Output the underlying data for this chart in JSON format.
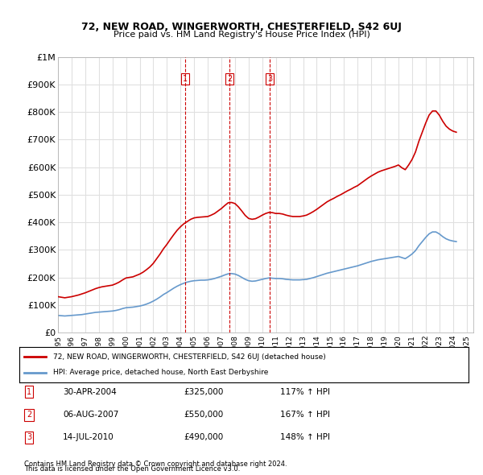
{
  "title": "72, NEW ROAD, WINGERWORTH, CHESTERFIELD, S42 6UJ",
  "subtitle": "Price paid vs. HM Land Registry's House Price Index (HPI)",
  "ylabel_ticks": [
    "£0",
    "£100K",
    "£200K",
    "£300K",
    "£400K",
    "£500K",
    "£600K",
    "£700K",
    "£800K",
    "£900K",
    "£1M"
  ],
  "ytick_values": [
    0,
    100000,
    200000,
    300000,
    400000,
    500000,
    600000,
    700000,
    800000,
    900000,
    1000000
  ],
  "ylim": [
    0,
    1000000
  ],
  "xlim_start": 1995.0,
  "xlim_end": 2025.5,
  "background_color": "#ffffff",
  "plot_background": "#ffffff",
  "grid_color": "#e0e0e0",
  "red_line_color": "#cc0000",
  "blue_line_color": "#6699cc",
  "transaction_marker_color": "#cc0000",
  "transaction_line_color": "#cc0000",
  "transactions": [
    {
      "date_num": 2004.33,
      "price": 325000,
      "label": "1",
      "date_str": "30-APR-2004",
      "price_str": "£325,000",
      "pct_str": "117% ↑ HPI"
    },
    {
      "date_num": 2007.59,
      "price": 550000,
      "label": "2",
      "date_str": "06-AUG-2007",
      "price_str": "£550,000",
      "pct_str": "167% ↑ HPI"
    },
    {
      "date_num": 2010.54,
      "price": 490000,
      "label": "3",
      "date_str": "14-JUL-2010",
      "price_str": "£490,000",
      "pct_str": "148% ↑ HPI"
    }
  ],
  "legend_label_red": "72, NEW ROAD, WINGERWORTH, CHESTERFIELD, S42 6UJ (detached house)",
  "legend_label_blue": "HPI: Average price, detached house, North East Derbyshire",
  "footnote1": "Contains HM Land Registry data © Crown copyright and database right 2024.",
  "footnote2": "This data is licensed under the Open Government Licence v3.0.",
  "hpi_data": {
    "years": [
      1995.0,
      1995.25,
      1995.5,
      1995.75,
      1996.0,
      1996.25,
      1996.5,
      1996.75,
      1997.0,
      1997.25,
      1997.5,
      1997.75,
      1998.0,
      1998.25,
      1998.5,
      1998.75,
      1999.0,
      1999.25,
      1999.5,
      1999.75,
      2000.0,
      2000.25,
      2000.5,
      2000.75,
      2001.0,
      2001.25,
      2001.5,
      2001.75,
      2002.0,
      2002.25,
      2002.5,
      2002.75,
      2003.0,
      2003.25,
      2003.5,
      2003.75,
      2004.0,
      2004.25,
      2004.5,
      2004.75,
      2005.0,
      2005.25,
      2005.5,
      2005.75,
      2006.0,
      2006.25,
      2006.5,
      2006.75,
      2007.0,
      2007.25,
      2007.5,
      2007.75,
      2008.0,
      2008.25,
      2008.5,
      2008.75,
      2009.0,
      2009.25,
      2009.5,
      2009.75,
      2010.0,
      2010.25,
      2010.5,
      2010.75,
      2011.0,
      2011.25,
      2011.5,
      2011.75,
      2012.0,
      2012.25,
      2012.5,
      2012.75,
      2013.0,
      2013.25,
      2013.5,
      2013.75,
      2014.0,
      2014.25,
      2014.5,
      2014.75,
      2015.0,
      2015.25,
      2015.5,
      2015.75,
      2016.0,
      2016.25,
      2016.5,
      2016.75,
      2017.0,
      2017.25,
      2017.5,
      2017.75,
      2018.0,
      2018.25,
      2018.5,
      2018.75,
      2019.0,
      2019.25,
      2019.5,
      2019.75,
      2020.0,
      2020.25,
      2020.5,
      2020.75,
      2021.0,
      2021.25,
      2021.5,
      2021.75,
      2022.0,
      2022.25,
      2022.5,
      2022.75,
      2023.0,
      2023.25,
      2023.5,
      2023.75,
      2024.0,
      2024.25
    ],
    "values": [
      62000,
      61000,
      60000,
      61000,
      62000,
      63000,
      64000,
      65000,
      67000,
      69000,
      71000,
      73000,
      74000,
      75000,
      76000,
      77000,
      78000,
      80000,
      83000,
      87000,
      90000,
      91000,
      92000,
      94000,
      96000,
      99000,
      103000,
      108000,
      114000,
      121000,
      129000,
      138000,
      145000,
      153000,
      161000,
      168000,
      174000,
      179000,
      183000,
      186000,
      188000,
      189000,
      190000,
      190000,
      191000,
      193000,
      196000,
      200000,
      204000,
      209000,
      213000,
      214000,
      212000,
      207000,
      200000,
      193000,
      188000,
      186000,
      187000,
      190000,
      193000,
      196000,
      198000,
      197000,
      196000,
      196000,
      195000,
      193000,
      192000,
      191000,
      191000,
      191000,
      192000,
      193000,
      196000,
      199000,
      203000,
      207000,
      211000,
      215000,
      218000,
      221000,
      224000,
      227000,
      230000,
      233000,
      236000,
      239000,
      242000,
      246000,
      250000,
      254000,
      258000,
      261000,
      264000,
      266000,
      268000,
      270000,
      272000,
      274000,
      276000,
      272000,
      268000,
      276000,
      285000,
      297000,
      315000,
      330000,
      345000,
      358000,
      365000,
      365000,
      358000,
      348000,
      340000,
      335000,
      332000,
      330000
    ]
  },
  "property_data": {
    "years": [
      1995.0,
      1995.25,
      1995.5,
      1995.75,
      1996.0,
      1996.25,
      1996.5,
      1996.75,
      1997.0,
      1997.25,
      1997.5,
      1997.75,
      1998.0,
      1998.25,
      1998.5,
      1998.75,
      1999.0,
      1999.25,
      1999.5,
      1999.75,
      2000.0,
      2000.25,
      2000.5,
      2000.75,
      2001.0,
      2001.25,
      2001.5,
      2001.75,
      2002.0,
      2002.25,
      2002.5,
      2002.75,
      2003.0,
      2003.25,
      2003.5,
      2003.75,
      2004.0,
      2004.25,
      2004.5,
      2004.75,
      2005.0,
      2005.25,
      2005.5,
      2005.75,
      2006.0,
      2006.25,
      2006.5,
      2006.75,
      2007.0,
      2007.25,
      2007.5,
      2007.75,
      2008.0,
      2008.25,
      2008.5,
      2008.75,
      2009.0,
      2009.25,
      2009.5,
      2009.75,
      2010.0,
      2010.25,
      2010.5,
      2010.75,
      2011.0,
      2011.25,
      2011.5,
      2011.75,
      2012.0,
      2012.25,
      2012.5,
      2012.75,
      2013.0,
      2013.25,
      2013.5,
      2013.75,
      2014.0,
      2014.25,
      2014.5,
      2014.75,
      2015.0,
      2015.25,
      2015.5,
      2015.75,
      2016.0,
      2016.25,
      2016.5,
      2016.75,
      2017.0,
      2017.25,
      2017.5,
      2017.75,
      2018.0,
      2018.25,
      2018.5,
      2018.75,
      2019.0,
      2019.25,
      2019.5,
      2019.75,
      2020.0,
      2020.25,
      2020.5,
      2020.75,
      2021.0,
      2021.25,
      2021.5,
      2021.75,
      2022.0,
      2022.25,
      2022.5,
      2022.75,
      2023.0,
      2023.25,
      2023.5,
      2023.75,
      2024.0,
      2024.25
    ],
    "values": [
      130000,
      128000,
      126000,
      128000,
      130000,
      133000,
      136000,
      140000,
      144000,
      149000,
      154000,
      159000,
      163000,
      166000,
      168000,
      170000,
      172000,
      177000,
      183000,
      191000,
      198000,
      200000,
      202000,
      207000,
      212000,
      219000,
      228000,
      238000,
      251000,
      268000,
      285000,
      304000,
      320000,
      338000,
      355000,
      371000,
      384000,
      395000,
      403000,
      411000,
      416000,
      418000,
      419000,
      420000,
      421000,
      426000,
      432000,
      441000,
      450000,
      461000,
      471000,
      472000,
      468000,
      456000,
      441000,
      425000,
      414000,
      411000,
      413000,
      419000,
      426000,
      432000,
      436000,
      435000,
      432000,
      432000,
      430000,
      426000,
      423000,
      421000,
      421000,
      421000,
      423000,
      426000,
      432000,
      439000,
      447000,
      456000,
      465000,
      474000,
      481000,
      487000,
      494000,
      500000,
      507000,
      514000,
      520000,
      527000,
      533000,
      542000,
      551000,
      560000,
      568000,
      575000,
      582000,
      587000,
      591000,
      595000,
      599000,
      603000,
      608000,
      598000,
      591000,
      608000,
      628000,
      655000,
      694000,
      727000,
      760000,
      789000,
      804000,
      804000,
      789000,
      767000,
      749000,
      738000,
      731000,
      727000
    ]
  }
}
